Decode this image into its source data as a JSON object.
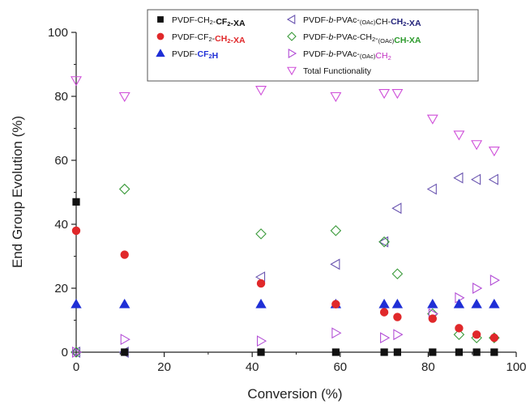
{
  "chart_data": {
    "type": "scatter",
    "xlabel": "Conversion (%)",
    "ylabel": "End Group Evolution (%)",
    "xlim": [
      0,
      100
    ],
    "ylim": [
      0,
      100
    ],
    "xticks": [
      0,
      20,
      40,
      60,
      80,
      100
    ],
    "yticks": [
      0,
      20,
      40,
      60,
      80,
      100
    ],
    "grid": false,
    "legend_position": "top",
    "series": [
      {
        "name_parts": [
          {
            "t": "PVDF-CH"
          },
          {
            "t": "2",
            "sub": true
          },
          {
            "t": "-"
          },
          {
            "t": "CF",
            "bold": true
          },
          {
            "t": "2",
            "bold": true,
            "sub": true
          },
          {
            "t": "-XA",
            "bold": true
          }
        ],
        "marker": "square",
        "color": "#111111",
        "filled": true,
        "points": [
          [
            0,
            47
          ],
          [
            11,
            0
          ],
          [
            42,
            0
          ],
          [
            59,
            0
          ],
          [
            70,
            0
          ],
          [
            73,
            0
          ],
          [
            81,
            0
          ],
          [
            87,
            0
          ],
          [
            91,
            0
          ],
          [
            95,
            0
          ]
        ]
      },
      {
        "name_parts": [
          {
            "t": "PVDF-CF"
          },
          {
            "t": "2",
            "sub": true
          },
          {
            "t": "-"
          },
          {
            "t": "CH",
            "bold": true,
            "color": "#e0282a"
          },
          {
            "t": "2",
            "bold": true,
            "sub": true,
            "color": "#e0282a"
          },
          {
            "t": "-XA",
            "bold": true,
            "color": "#e0282a"
          }
        ],
        "marker": "circle",
        "color": "#e0282a",
        "filled": true,
        "points": [
          [
            0,
            38
          ],
          [
            11,
            30.5
          ],
          [
            42,
            21.5
          ],
          [
            59,
            15
          ],
          [
            70,
            12.5
          ],
          [
            73,
            11
          ],
          [
            81,
            10.5
          ],
          [
            87,
            7.5
          ],
          [
            91,
            5.5
          ],
          [
            95,
            4.5
          ]
        ]
      },
      {
        "name_parts": [
          {
            "t": "PVDF-"
          },
          {
            "t": "CF",
            "bold": true,
            "color": "#1f2fd6"
          },
          {
            "t": "2",
            "bold": true,
            "sub": true,
            "color": "#1f2fd6"
          },
          {
            "t": "H",
            "bold": true,
            "color": "#1f2fd6"
          }
        ],
        "marker": "triangle-up",
        "color": "#1f2fd6",
        "filled": true,
        "points": [
          [
            0,
            15
          ],
          [
            11,
            15
          ],
          [
            42,
            15
          ],
          [
            59,
            15
          ],
          [
            70,
            15
          ],
          [
            73,
            15
          ],
          [
            81,
            15
          ],
          [
            87,
            15
          ],
          [
            91,
            15
          ],
          [
            95,
            15
          ]
        ]
      },
      {
        "name_parts": [
          {
            "t": "PVDF-"
          },
          {
            "t": "b",
            "italic": true
          },
          {
            "t": "-PVAc-"
          },
          {
            "t": "(OAc)",
            "sub": true
          },
          {
            "t": "CH-"
          },
          {
            "t": "CH",
            "bold": true,
            "color": "#23237a"
          },
          {
            "t": "2",
            "bold": true,
            "sub": true,
            "color": "#23237a"
          },
          {
            "t": "-XA",
            "bold": true,
            "color": "#23237a"
          }
        ],
        "marker": "triangle-left",
        "color": "#6a55b0",
        "filled": false,
        "points": [
          [
            0,
            0
          ],
          [
            11,
            0
          ],
          [
            42,
            23.5
          ],
          [
            59,
            27.5
          ],
          [
            70,
            34.5
          ],
          [
            73,
            45
          ],
          [
            81,
            51
          ],
          [
            87,
            54.5
          ],
          [
            91,
            54
          ],
          [
            95,
            54
          ]
        ]
      },
      {
        "name_parts": [
          {
            "t": "PVDF-"
          },
          {
            "t": "b",
            "italic": true
          },
          {
            "t": "-PVAc-CH"
          },
          {
            "t": "2",
            "sub": true
          },
          {
            "t": "-"
          },
          {
            "t": "(OAc)",
            "sub": true
          },
          {
            "t": "CH-XA",
            "bold": true,
            "color": "#2c9a2c"
          }
        ],
        "marker": "diamond",
        "color": "#3a9a3a",
        "filled": false,
        "points": [
          [
            0,
            0
          ],
          [
            11,
            51
          ],
          [
            42,
            37
          ],
          [
            59,
            38
          ],
          [
            70,
            34.5
          ],
          [
            73,
            24.5
          ],
          [
            81,
            12
          ],
          [
            87,
            5.5
          ],
          [
            91,
            4.5
          ],
          [
            95,
            4.5
          ]
        ]
      },
      {
        "name_parts": [
          {
            "t": "PVDF-"
          },
          {
            "t": "b",
            "italic": true
          },
          {
            "t": "-PVAc-"
          },
          {
            "t": "(OAc)",
            "sub": true
          },
          {
            "t": "CH",
            "color": "#c02cc0"
          },
          {
            "t": "2",
            "sub": true,
            "color": "#c02cc0"
          }
        ],
        "marker": "triangle-right",
        "color": "#b34fd6",
        "filled": false,
        "points": [
          [
            0,
            0
          ],
          [
            11,
            4
          ],
          [
            42,
            3.5
          ],
          [
            59,
            6
          ],
          [
            70,
            4.5
          ],
          [
            73,
            5.5
          ],
          [
            81,
            12
          ],
          [
            87,
            17
          ],
          [
            91,
            20
          ],
          [
            95,
            22.5
          ]
        ]
      },
      {
        "name_parts": [
          {
            "t": "Total Functionality"
          }
        ],
        "marker": "triangle-down",
        "color": "#cf4fd9",
        "filled": false,
        "points": [
          [
            0,
            85
          ],
          [
            11,
            80
          ],
          [
            42,
            82
          ],
          [
            59,
            80
          ],
          [
            70,
            81
          ],
          [
            73,
            81
          ],
          [
            81,
            73
          ],
          [
            87,
            68
          ],
          [
            91,
            65
          ],
          [
            95,
            63
          ]
        ]
      }
    ]
  }
}
